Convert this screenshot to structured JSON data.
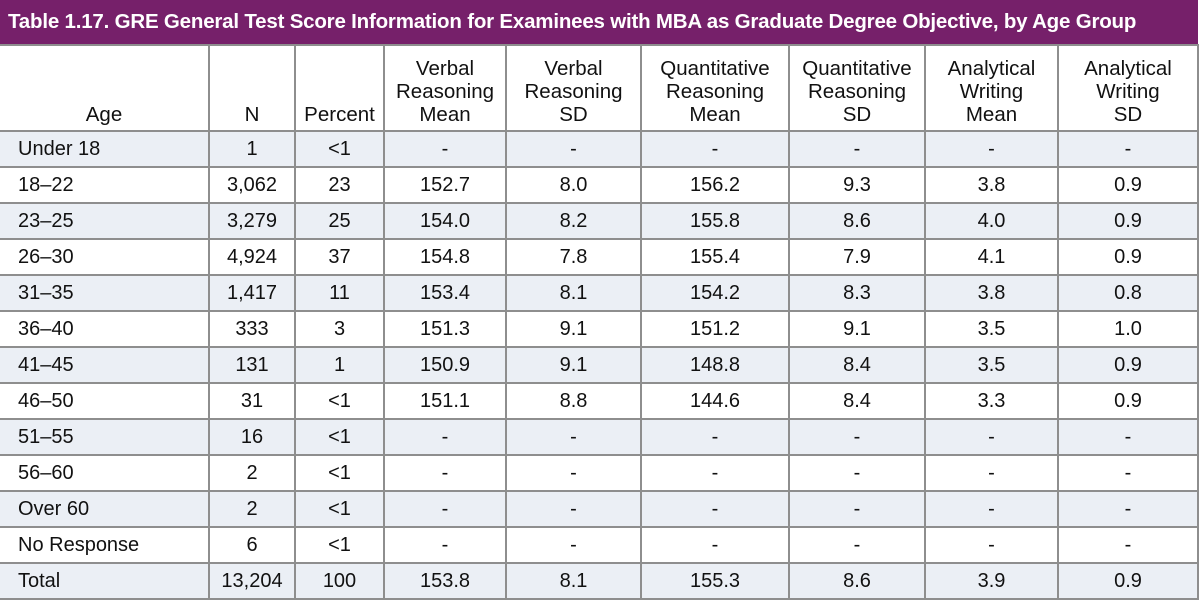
{
  "title": "Table 1.17. GRE General Test Score Information for Examinees with MBA as Graduate Degree Objective, by Age Group",
  "colors": {
    "title_bar": "#76206a",
    "row_shade": "#ebeff5",
    "border": "#8e8e8e"
  },
  "columns": [
    {
      "key": "age",
      "label": "Age"
    },
    {
      "key": "n",
      "label": "N"
    },
    {
      "key": "percent",
      "label": "Percent"
    },
    {
      "key": "vr_mean",
      "lines": [
        "Verbal",
        "Reasoning",
        "Mean"
      ]
    },
    {
      "key": "vr_sd",
      "lines": [
        "Verbal",
        "Reasoning",
        "SD"
      ]
    },
    {
      "key": "qr_mean",
      "lines": [
        "Quantitative",
        "Reasoning",
        "Mean"
      ]
    },
    {
      "key": "qr_sd",
      "lines": [
        "Quantitative",
        "Reasoning",
        "SD"
      ]
    },
    {
      "key": "aw_mean",
      "lines": [
        "Analytical",
        "Writing",
        "Mean"
      ]
    },
    {
      "key": "aw_sd",
      "lines": [
        "Analytical",
        "Writing",
        "SD"
      ]
    }
  ],
  "rows": [
    [
      "Under 18",
      "1",
      "<1",
      "-",
      "-",
      "-",
      "-",
      "-",
      "-"
    ],
    [
      "18–22",
      "3,062",
      "23",
      "152.7",
      "8.0",
      "156.2",
      "9.3",
      "3.8",
      "0.9"
    ],
    [
      "23–25",
      "3,279",
      "25",
      "154.0",
      "8.2",
      "155.8",
      "8.6",
      "4.0",
      "0.9"
    ],
    [
      "26–30",
      "4,924",
      "37",
      "154.8",
      "7.8",
      "155.4",
      "7.9",
      "4.1",
      "0.9"
    ],
    [
      "31–35",
      "1,417",
      "11",
      "153.4",
      "8.1",
      "154.2",
      "8.3",
      "3.8",
      "0.8"
    ],
    [
      "36–40",
      "333",
      "3",
      "151.3",
      "9.1",
      "151.2",
      "9.1",
      "3.5",
      "1.0"
    ],
    [
      "41–45",
      "131",
      "1",
      "150.9",
      "9.1",
      "148.8",
      "8.4",
      "3.5",
      "0.9"
    ],
    [
      "46–50",
      "31",
      "<1",
      "151.1",
      "8.8",
      "144.6",
      "8.4",
      "3.3",
      "0.9"
    ],
    [
      "51–55",
      "16",
      "<1",
      "-",
      "-",
      "-",
      "-",
      "-",
      "-"
    ],
    [
      "56–60",
      "2",
      "<1",
      "-",
      "-",
      "-",
      "-",
      "-",
      "-"
    ],
    [
      "Over 60",
      "2",
      "<1",
      "-",
      "-",
      "-",
      "-",
      "-",
      "-"
    ],
    [
      "No Response",
      "6",
      "<1",
      "-",
      "-",
      "-",
      "-",
      "-",
      "-"
    ],
    [
      "Total",
      "13,204",
      "100",
      "153.8",
      "8.1",
      "155.3",
      "8.6",
      "3.9",
      "0.9"
    ]
  ]
}
